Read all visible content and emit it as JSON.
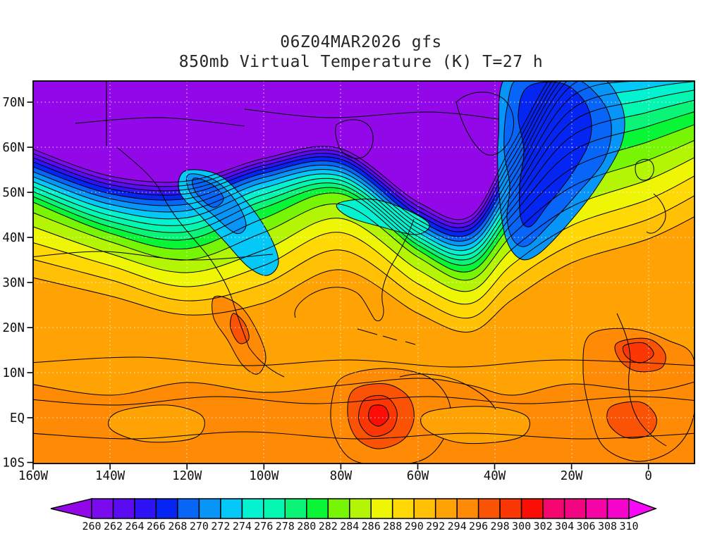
{
  "title": {
    "line1": "06Z04MAR2026 gfs",
    "line2": "850mb Virtual Temperature (K) T=27 h"
  },
  "chart_data": {
    "type": "heatmap",
    "title": "06Z04MAR2026 gfs",
    "subtitle": "850mb Virtual Temperature (K) T=27 h",
    "model": "gfs",
    "run": "06Z04MAR2026",
    "field": "850mb Virtual Temperature",
    "units": "K",
    "forecast_hour_label": "T=27 h",
    "grid": "dotted lat/lon every 10 deg lat, 20 deg lon",
    "x_axis": {
      "labels": [
        "160W",
        "140W",
        "120W",
        "100W",
        "80W",
        "60W",
        "40W",
        "20W",
        "0"
      ]
    },
    "y_axis": {
      "labels": [
        "70N",
        "60N",
        "50N",
        "40N",
        "30N",
        "20N",
        "10N",
        "EQ",
        "10S"
      ]
    },
    "colorbar": {
      "levels": [
        260,
        262,
        264,
        266,
        268,
        270,
        272,
        274,
        276,
        278,
        280,
        282,
        284,
        286,
        288,
        290,
        292,
        294,
        296,
        298,
        300,
        302,
        304,
        306,
        308,
        310
      ],
      "labels": [
        "260",
        "262",
        "264",
        "266",
        "268",
        "270",
        "272",
        "274",
        "276",
        "278",
        "280",
        "282",
        "284",
        "286",
        "288",
        "290",
        "292",
        "294",
        "296",
        "298",
        "300",
        "302",
        "304",
        "306",
        "308",
        "310"
      ],
      "extend_below": true,
      "extend_above": true,
      "colors": [
        "#9208E8",
        "#7A0BEF",
        "#5A0BF2",
        "#2E14F5",
        "#0525F2",
        "#0766F8",
        "#0795F8",
        "#04C8F8",
        "#05F2D0",
        "#04F7B0",
        "#0AF577",
        "#09F636",
        "#77F505",
        "#B4F505",
        "#EEF505",
        "#FFD805",
        "#FFC005",
        "#FFA305",
        "#FF8A05",
        "#FB5305",
        "#FB3805",
        "#FB0E05",
        "#F5056E",
        "#F20580",
        "#F505A5",
        "#F505CC",
        "#F80AF8"
      ]
    },
    "pattern_summary": "Cold pool (<260K, purple) over Alaska, arctic Canada and Greenland; tight baroclinic zone across ~50-55N; cold trough over western Canada/Rockies; deep blue trough over the central North Atlantic near Iceland extending to 40N/40W; green mid-latitude belt over the Pacific, northern US and a tongue into the central Atlantic; yellow-orange subtropics; broad 292-296K orange through the tropics with warm cores near northern South America and West Africa (296-302K)."
  }
}
